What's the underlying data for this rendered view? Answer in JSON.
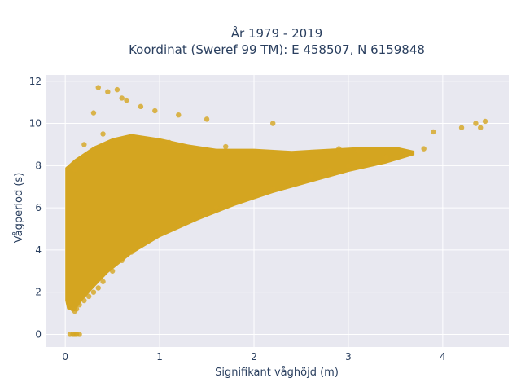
{
  "chart_data": {
    "type": "scatter",
    "title_line1": "År 1979 - 2019",
    "title_line2": "Koordinat (Sweref 99 TM): E 458507, N 6159848",
    "xlabel": "Signifikant våghöjd (m)",
    "ylabel": "Vågperiod (s)",
    "xlim": [
      -0.2,
      4.7
    ],
    "ylim": [
      -0.6,
      12.3
    ],
    "x_ticks": [
      0,
      1,
      2,
      3,
      4
    ],
    "y_ticks": [
      0,
      2,
      4,
      6,
      8,
      10,
      12
    ],
    "grid": true,
    "legend": "none",
    "marker_color": "#d4a520",
    "background_color": "#e8e8f0",
    "series": [
      {
        "x": [
          0.05,
          0.08,
          0.1,
          0.12,
          0.15,
          0.05,
          0.08,
          0.1,
          0.12,
          0.15,
          0.2,
          0.25,
          0.3,
          0.35,
          0.4,
          0.5,
          0.6,
          0.7,
          0.8,
          0.9,
          1.0,
          1.2,
          1.4,
          1.6,
          1.8,
          2.0,
          2.2,
          2.4,
          2.6,
          2.8,
          3.0,
          3.2,
          3.4,
          3.6,
          3.8,
          3.9,
          4.2,
          4.35,
          4.4,
          4.45,
          0.1,
          0.2,
          0.3,
          0.45,
          0.55,
          0.65,
          0.8,
          0.35,
          0.6,
          0.95,
          1.2,
          1.5,
          2.2,
          0.4,
          0.7,
          1.1,
          1.7,
          2.9,
          3.1
        ],
        "y": [
          0,
          0,
          0,
          0,
          0,
          1.5,
          1.2,
          1.1,
          1.2,
          1.4,
          1.6,
          1.8,
          2.0,
          2.2,
          2.5,
          3.0,
          3.5,
          3.9,
          4.2,
          4.5,
          4.8,
          5.2,
          5.6,
          6.0,
          6.3,
          6.6,
          6.9,
          7.2,
          7.5,
          7.8,
          8.0,
          8.2,
          8.4,
          8.6,
          8.8,
          9.6,
          9.8,
          10.0,
          9.8,
          10.1,
          7.8,
          9.0,
          10.5,
          11.5,
          11.6,
          11.1,
          10.8,
          11.7,
          11.2,
          10.6,
          10.4,
          10.2,
          10.0,
          9.5,
          9.3,
          9.1,
          8.9,
          8.8,
          8.7
        ]
      }
    ]
  }
}
